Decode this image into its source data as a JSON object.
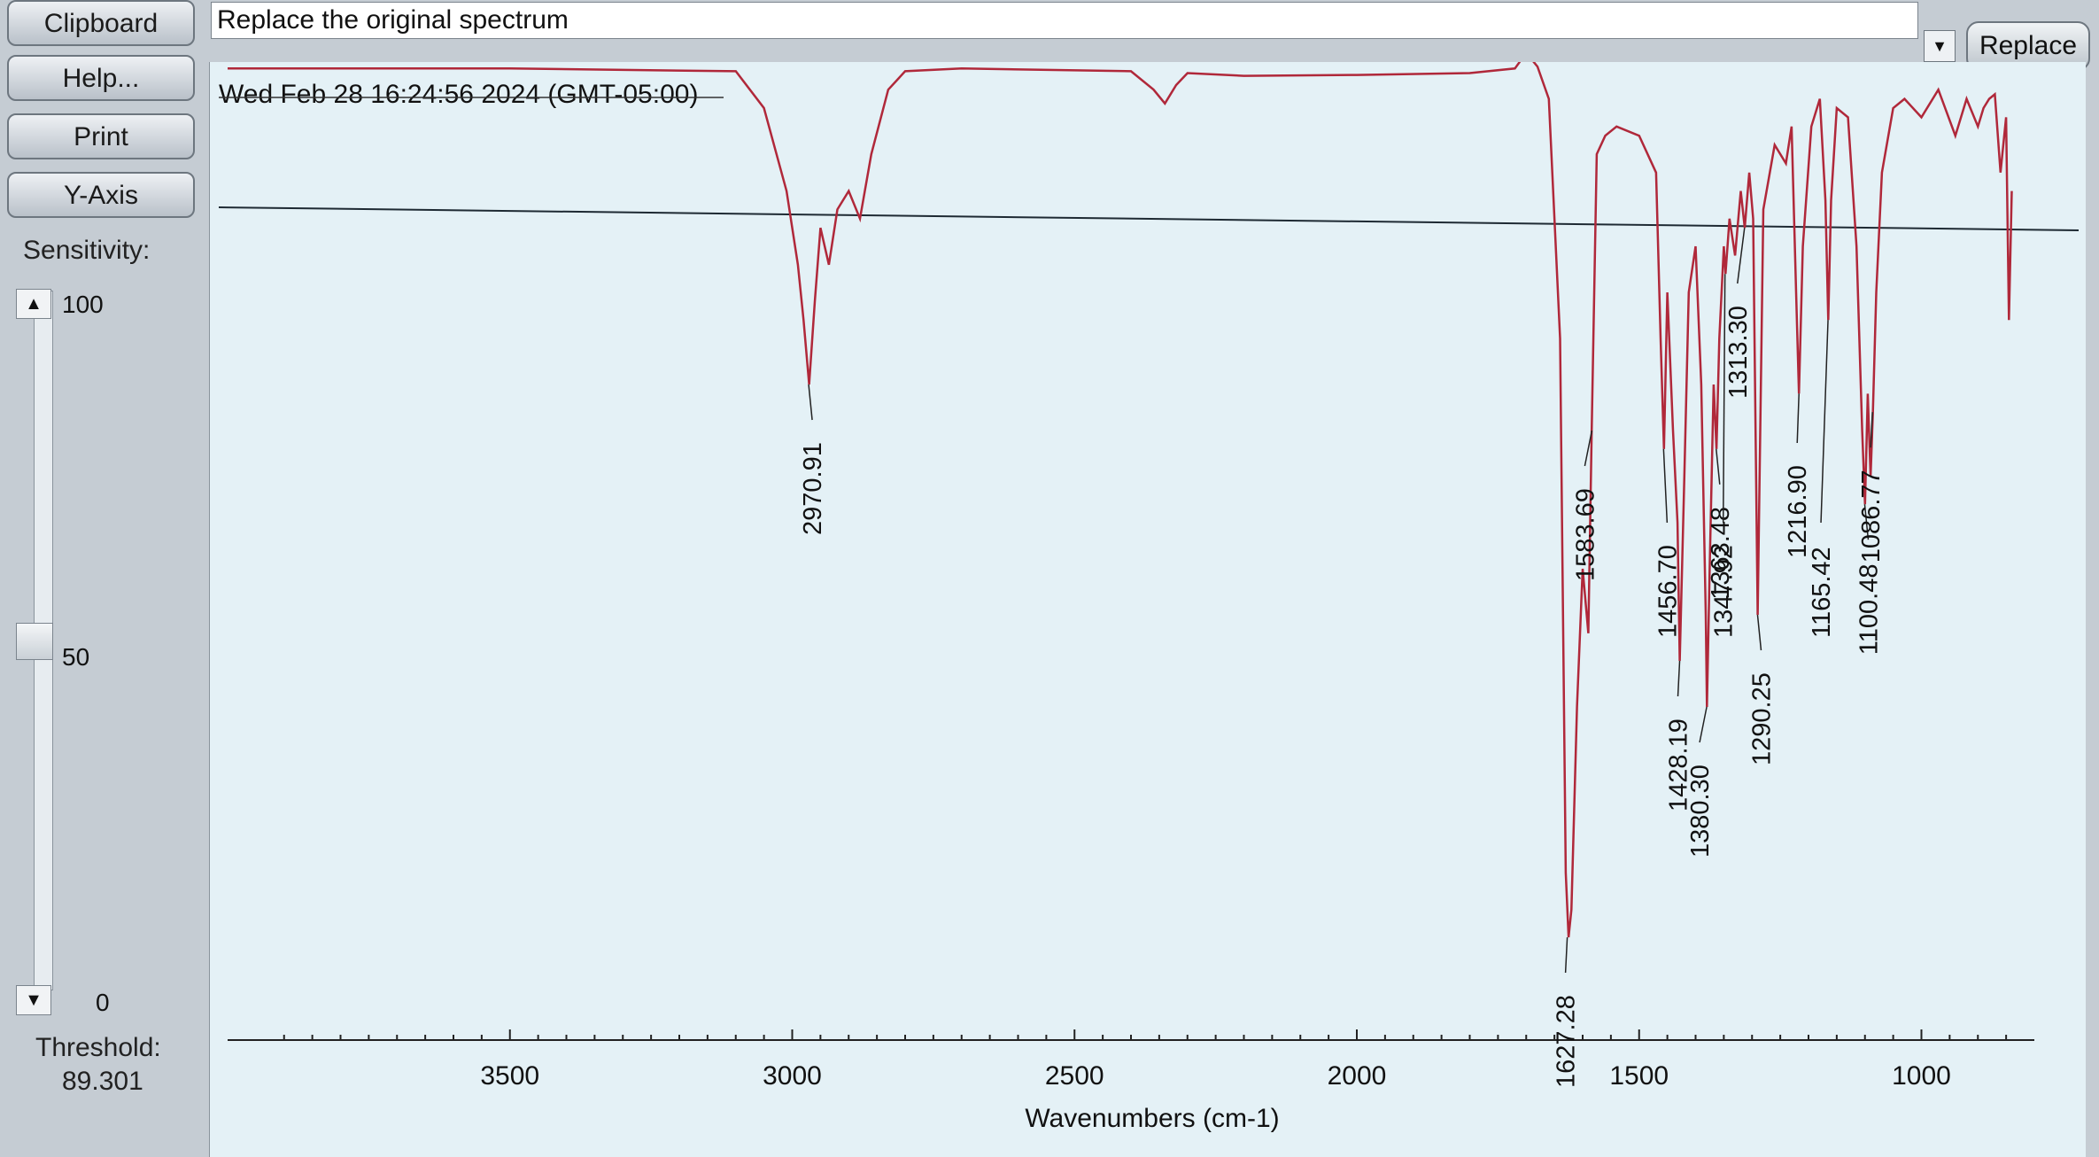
{
  "sidebar": {
    "clipboard_label": "Clipboard",
    "help_label": "Help...",
    "print_label": "Print",
    "yaxis_label": "Y-Axis",
    "sensitivity_label": "Sensitivity:",
    "sensitivity_max": "100",
    "sensitivity_mid": "50",
    "sensitivity_min": "0",
    "sensitivity_value": 50,
    "threshold_label": "Threshold:",
    "threshold_value": "89.301"
  },
  "header": {
    "title_text": "Replace the original spectrum",
    "replace_label": "Replace"
  },
  "spectrum": {
    "timestamp": "Wed Feb 28 16:24:56 2024 (GMT-05:00)",
    "line_color": "#b0283a"
  },
  "chart_data": {
    "type": "line",
    "xlabel": "Wavenumbers (cm-1)",
    "ylabel": "",
    "xlim": [
      4000,
      800
    ],
    "x_ticks": [
      3500,
      3000,
      2500,
      2000,
      1500,
      1000
    ],
    "peaks": [
      "2970.91",
      "1627.28",
      "1583.69",
      "1456.70",
      "1428.19",
      "1380.30",
      "1363.48",
      "1347.92",
      "1313.30",
      "1290.25",
      "1216.90",
      "1165.42",
      "1100.48",
      "1086.77"
    ],
    "series": [
      {
        "x": [
          4000,
          3500,
          3100,
          3050,
          3010,
          2990,
          2980,
          2970,
          2960,
          2950,
          2935,
          2920,
          2900,
          2880,
          2860,
          2830,
          2800,
          2700,
          2400,
          2360,
          2340,
          2320,
          2300,
          2200,
          2000,
          1800,
          1720,
          1700,
          1680,
          1660,
          1640,
          1630,
          1625,
          1620,
          1610,
          1600,
          1590,
          1584,
          1575,
          1560,
          1540,
          1500,
          1470,
          1462,
          1456,
          1450,
          1440,
          1432,
          1428,
          1420,
          1412,
          1400,
          1390,
          1382,
          1380,
          1375,
          1368,
          1363,
          1358,
          1350,
          1347,
          1340,
          1330,
          1320,
          1313,
          1305,
          1298,
          1290,
          1280,
          1260,
          1240,
          1230,
          1222,
          1217,
          1210,
          1195,
          1180,
          1170,
          1165,
          1160,
          1150,
          1130,
          1115,
          1105,
          1100,
          1095,
          1090,
          1086,
          1080,
          1070,
          1050,
          1030,
          1000,
          970,
          940,
          920,
          900,
          890,
          880,
          870,
          860,
          850,
          845,
          840
        ],
        "values": [
          99.3,
          99.3,
          99.0,
          95.0,
          86.0,
          78.0,
          72.0,
          65.0,
          74.0,
          82.0,
          78.0,
          84.0,
          86.0,
          83.0,
          90.0,
          97.0,
          99.0,
          99.3,
          99.0,
          97.0,
          95.5,
          97.5,
          98.8,
          98.5,
          98.6,
          98.8,
          99.3,
          101.0,
          99.5,
          96.0,
          70.0,
          12.0,
          5.0,
          8.0,
          30.0,
          45.0,
          38.0,
          60.0,
          90.0,
          92.0,
          93.0,
          92.0,
          88.0,
          70.0,
          58.0,
          75.0,
          60.0,
          50.0,
          35.0,
          55.0,
          75.0,
          80.0,
          65.0,
          40.0,
          30.0,
          45.0,
          65.0,
          58.0,
          70.0,
          80.0,
          77.0,
          83.0,
          79.0,
          86.0,
          82.0,
          88.0,
          83.0,
          40.0,
          84.0,
          91.0,
          89.0,
          93.0,
          75.0,
          64.0,
          80.0,
          93.0,
          96.0,
          85.0,
          72.0,
          85.0,
          95.0,
          94.0,
          80.0,
          60.0,
          52.0,
          64.0,
          55.0,
          62.0,
          75.0,
          88.0,
          95.0,
          96.0,
          94.0,
          97.0,
          92.0,
          96.0,
          93.0,
          95.0,
          96.0,
          96.5,
          88.0,
          94.0,
          72.0,
          86.0
        ]
      }
    ]
  }
}
